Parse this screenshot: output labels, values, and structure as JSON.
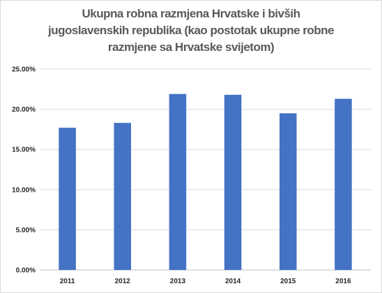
{
  "chart_data": {
    "type": "bar",
    "title": "Ukupna robna razmjena Hrvatske i bivših\njugoslavenskih republika (kao postotak ukupne robne\nrazmjene sa Hrvatske svijetom)",
    "categories": [
      "2011",
      "2012",
      "2013",
      "2014",
      "2015",
      "2016"
    ],
    "series": [
      {
        "values": [
          17.7,
          18.3,
          21.9,
          21.8,
          19.5,
          21.3
        ]
      }
    ],
    "xlabel": "",
    "ylabel": "",
    "ylim": [
      0,
      25
    ],
    "y_ticks": [
      "0.00%",
      "5.00%",
      "10.00%",
      "15.00%",
      "20.00%",
      "25.00%"
    ],
    "grid": true,
    "legend": "none",
    "colors": {
      "bar": "#4472C4",
      "grid": "#d9d9d9",
      "axis": "#bfbfbf",
      "title": "#595959"
    }
  }
}
